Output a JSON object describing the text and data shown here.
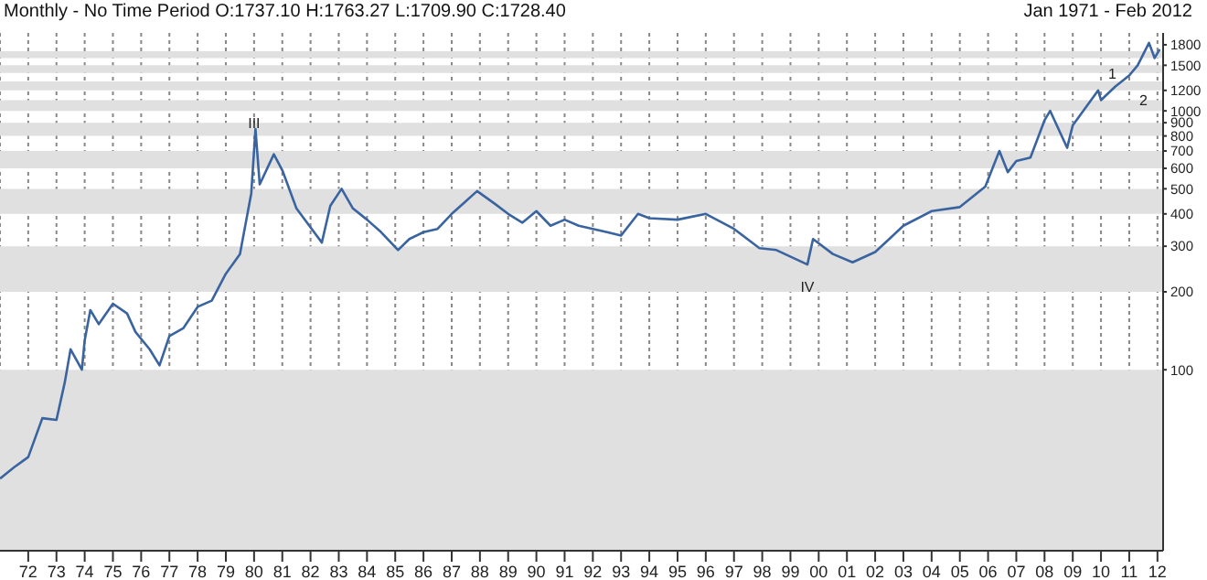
{
  "chart_data": {
    "type": "line",
    "title": "Monthly -  No Time Period O:1737.10 H:1763.27 L:1709.90 C:1728.40",
    "subtitle": "Jan 1971  -  Feb 2012",
    "x": [
      1971.0,
      1971.5,
      1972.0,
      1972.5,
      1973.0,
      1973.3,
      1973.5,
      1973.9,
      1974.0,
      1974.2,
      1974.5,
      1975.0,
      1975.5,
      1975.8,
      1976.3,
      1976.65,
      1977.0,
      1977.5,
      1978.0,
      1978.5,
      1979.0,
      1979.5,
      1979.9,
      1980.05,
      1980.2,
      1980.7,
      1981.0,
      1981.5,
      1982.4,
      1982.7,
      1983.1,
      1983.5,
      1984.0,
      1984.5,
      1985.1,
      1985.5,
      1986.0,
      1986.5,
      1987.0,
      1987.9,
      1988.5,
      1989.0,
      1989.5,
      1990.0,
      1990.5,
      1991.0,
      1991.5,
      1992.0,
      1992.5,
      1993.0,
      1993.6,
      1994.0,
      1995.0,
      1996.0,
      1997.0,
      1997.9,
      1998.5,
      1999.6,
      1999.8,
      2000.5,
      2001.2,
      2002.0,
      2002.5,
      2003.0,
      2004.0,
      2005.0,
      2005.9,
      2006.4,
      2006.7,
      2007.0,
      2007.5,
      2008.0,
      2008.2,
      2008.8,
      2009.0,
      2009.9,
      2010.0,
      2010.5,
      2011.0,
      2011.3,
      2011.7,
      2011.9,
      2012.08
    ],
    "series": [
      {
        "color": "#3a64a0",
        "values": [
          38,
          42,
          46,
          65,
          64,
          90,
          120,
          100,
          130,
          170,
          150,
          180,
          165,
          140,
          120,
          104,
          135,
          145,
          175,
          185,
          235,
          280,
          480,
          850,
          520,
          680,
          590,
          420,
          310,
          430,
          500,
          420,
          380,
          340,
          290,
          320,
          340,
          350,
          400,
          490,
          440,
          400,
          370,
          410,
          360,
          380,
          360,
          350,
          340,
          330,
          400,
          385,
          380,
          400,
          350,
          295,
          290,
          255,
          320,
          280,
          260,
          285,
          320,
          360,
          410,
          425,
          510,
          700,
          580,
          640,
          660,
          920,
          1000,
          720,
          880,
          1200,
          1100,
          1240,
          1370,
          1500,
          1830,
          1600,
          1730
        ]
      }
    ],
    "log": "y",
    "ylim": [
      20,
      2000
    ],
    "yticks": [
      100,
      200,
      300,
      400,
      500,
      600,
      700,
      800,
      900,
      1000,
      1200,
      1500,
      1800
    ],
    "xlim": [
      1971,
      2012.2
    ],
    "xticks": [
      {
        "value": 1972,
        "label": "72"
      },
      {
        "value": 1973,
        "label": "73"
      },
      {
        "value": 1974,
        "label": "74"
      },
      {
        "value": 1975,
        "label": "75"
      },
      {
        "value": 1976,
        "label": "76"
      },
      {
        "value": 1977,
        "label": "77"
      },
      {
        "value": 1978,
        "label": "78"
      },
      {
        "value": 1979,
        "label": "79"
      },
      {
        "value": 1980,
        "label": "80"
      },
      {
        "value": 1981,
        "label": "81"
      },
      {
        "value": 1982,
        "label": "82"
      },
      {
        "value": 1983,
        "label": "83"
      },
      {
        "value": 1984,
        "label": "84"
      },
      {
        "value": 1985,
        "label": "85"
      },
      {
        "value": 1986,
        "label": "86"
      },
      {
        "value": 1987,
        "label": "87"
      },
      {
        "value": 1988,
        "label": "88"
      },
      {
        "value": 1989,
        "label": "89"
      },
      {
        "value": 1990,
        "label": "90"
      },
      {
        "value": 1991,
        "label": "91"
      },
      {
        "value": 1992,
        "label": "92"
      },
      {
        "value": 1993,
        "label": "93"
      },
      {
        "value": 1994,
        "label": "94"
      },
      {
        "value": 1995,
        "label": "95"
      },
      {
        "value": 1996,
        "label": "96"
      },
      {
        "value": 1997,
        "label": "97"
      },
      {
        "value": 1998,
        "label": "98"
      },
      {
        "value": 1999,
        "label": "99"
      },
      {
        "value": 2000,
        "label": "00"
      },
      {
        "value": 2001,
        "label": "01"
      },
      {
        "value": 2002,
        "label": "02"
      },
      {
        "value": 2003,
        "label": "03"
      },
      {
        "value": 2004,
        "label": "04"
      },
      {
        "value": 2005,
        "label": "05"
      },
      {
        "value": 2006,
        "label": "06"
      },
      {
        "value": 2007,
        "label": "07"
      },
      {
        "value": 2008,
        "label": "08"
      },
      {
        "value": 2009,
        "label": "09"
      },
      {
        "value": 2010,
        "label": "10"
      },
      {
        "value": 2011,
        "label": "11"
      },
      {
        "value": 2012,
        "label": "12"
      }
    ],
    "grid": "x",
    "marker": "none",
    "line_style": "solid",
    "bands": [
      {
        "axis": "y",
        "from": 20,
        "to": 100,
        "color": "#e0e0e0"
      },
      {
        "axis": "y",
        "from": 200,
        "to": 300,
        "color": "#e0e0e0"
      },
      {
        "axis": "y",
        "from": 400,
        "to": 500,
        "color": "#e0e0e0"
      },
      {
        "axis": "y",
        "from": 600,
        "to": 700,
        "color": "#e0e0e0"
      },
      {
        "axis": "y",
        "from": 800,
        "to": 900,
        "color": "#e0e0e0"
      },
      {
        "axis": "y",
        "from": 1000,
        "to": 1100,
        "color": "#e0e0e0"
      },
      {
        "axis": "y",
        "from": 1200,
        "to": 1300,
        "color": "#e0e0e0"
      },
      {
        "axis": "y",
        "from": 1400,
        "to": 1500,
        "color": "#e0e0e0"
      },
      {
        "axis": "y",
        "from": 1600,
        "to": 1700,
        "color": "#e0e0e0"
      }
    ],
    "annotations": [
      {
        "text": "III",
        "x": 1980.0,
        "y": 900
      },
      {
        "text": "IV",
        "x": 1999.6,
        "y": 210
      },
      {
        "text": "1",
        "x": 2010.4,
        "y": 1400
      },
      {
        "text": "2",
        "x": 2011.5,
        "y": 1100
      }
    ]
  }
}
